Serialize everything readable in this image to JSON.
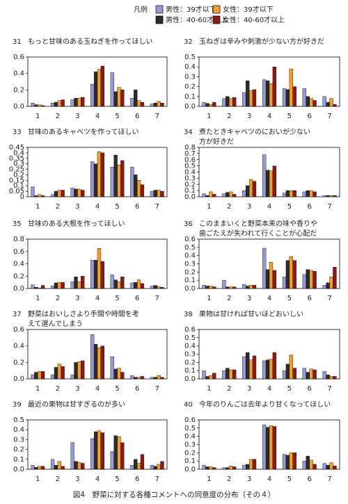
{
  "legend": {
    "title": "凡例",
    "series": [
      {
        "name": "男性：39才以下",
        "color": "#9a9ad0"
      },
      {
        "name": "男性：40-60才以上",
        "color": "#2b2b2b"
      },
      {
        "name": "女性：39才以下",
        "color": "#f0a030"
      },
      {
        "name": "女性：40-60才以上",
        "color": "#8b1a1a"
      }
    ]
  },
  "chart_data": [
    {
      "type": "bar",
      "number": "31",
      "title_lines": [
        "もっと甘味のある玉ねぎを作ってほしい"
      ],
      "categories": [
        "1",
        "2",
        "3",
        "4",
        "5",
        "6",
        "7"
      ],
      "series": [
        {
          "values": [
            0.04,
            0.04,
            0.08,
            0.27,
            0.41,
            0.1,
            0.03
          ]
        },
        {
          "values": [
            0.02,
            0.05,
            0.1,
            0.42,
            0.18,
            0.2,
            0.04
          ]
        },
        {
          "values": [
            0.02,
            0.07,
            0.1,
            0.45,
            0.23,
            0.07,
            0.06
          ]
        },
        {
          "values": [
            0.01,
            0.08,
            0.11,
            0.49,
            0.2,
            0.05,
            0.04
          ]
        }
      ],
      "ylim": [
        0,
        0.6
      ],
      "yticks": [
        {
          "value": 0,
          "label": "0.0"
        },
        0.2,
        0.4,
        0.6
      ]
    },
    {
      "type": "bar",
      "number": "32",
      "title_lines": [
        "玉ねぎは辛みや刺激が少ない方が好きだ"
      ],
      "categories": [
        "1",
        "2",
        "3",
        "4",
        "5",
        "6",
        "7"
      ],
      "series": [
        {
          "values": [
            0.04,
            0.08,
            0.14,
            0.27,
            0.18,
            0.18,
            0.1
          ]
        },
        {
          "values": [
            0.03,
            0.1,
            0.26,
            0.26,
            0.17,
            0.1,
            0.04
          ]
        },
        {
          "values": [
            0.02,
            0.08,
            0.16,
            0.23,
            0.38,
            0.08,
            0.08
          ]
        },
        {
          "values": [
            0.04,
            0.09,
            0.17,
            0.4,
            0.2,
            0.06,
            0.02
          ]
        }
      ],
      "ylim": [
        0,
        0.5
      ],
      "yticks": [
        {
          "value": 0,
          "label": "0.0"
        },
        0.1,
        0.2,
        0.3,
        0.4,
        0.5
      ]
    },
    {
      "type": "bar",
      "number": "33",
      "title_lines": [
        "甘味のあるキャベツを作ってほしい"
      ],
      "categories": [
        "1",
        "2",
        "3",
        "4",
        "5",
        "6",
        "7"
      ],
      "series": [
        {
          "values": [
            0.09,
            0.02,
            0.08,
            0.32,
            0.27,
            0.27,
            0.05
          ]
        },
        {
          "values": [
            0.01,
            0.05,
            0.07,
            0.3,
            0.38,
            0.2,
            0.06
          ]
        },
        {
          "values": [
            0.02,
            0.06,
            0.07,
            0.41,
            0.29,
            0.15,
            0.06
          ]
        },
        {
          "values": [
            0.01,
            0.06,
            0.06,
            0.4,
            0.33,
            0.11,
            0.05
          ]
        }
      ],
      "ylim": [
        0,
        0.45
      ],
      "yticks": [
        0,
        0.05,
        0.1,
        0.15,
        0.2,
        0.25,
        0.3,
        0.35,
        0.4,
        0.45
      ]
    },
    {
      "type": "bar",
      "number": "34",
      "title_lines": [
        "煮たときキャベツのにおいが少ない",
        "方が好きだ"
      ],
      "categories": [
        "1",
        "2",
        "3",
        "4",
        "5",
        "6",
        "7"
      ],
      "series": [
        {
          "values": [
            0.05,
            0.05,
            0.1,
            0.68,
            0.06,
            0.08,
            0.02
          ]
        },
        {
          "values": [
            0.02,
            0.07,
            0.18,
            0.43,
            0.1,
            0.1,
            0.02
          ]
        },
        {
          "values": [
            0.08,
            0.08,
            0.28,
            0.42,
            0.1,
            0.1,
            0.02
          ]
        },
        {
          "values": [
            0.04,
            0.04,
            0.25,
            0.5,
            0.1,
            0.08,
            0.02
          ]
        }
      ],
      "ylim": [
        0,
        0.8
      ],
      "yticks": [
        {
          "value": 0,
          "label": "0.0"
        },
        0.1,
        0.2,
        0.3,
        0.4,
        0.5,
        0.6,
        0.7,
        0.8
      ]
    },
    {
      "type": "bar",
      "number": "35",
      "title_lines": [
        "甘味のある大根を作ってほしい"
      ],
      "categories": [
        "1",
        "2",
        "3",
        "4",
        "5",
        "6",
        "7"
      ],
      "series": [
        {
          "values": [
            0.06,
            0.04,
            0.11,
            0.46,
            0.22,
            0.09,
            0.04
          ]
        },
        {
          "values": [
            0.02,
            0.09,
            0.19,
            0.46,
            0.14,
            0.1,
            0.05
          ]
        },
        {
          "values": [
            0.01,
            0.1,
            0.11,
            0.65,
            0.11,
            0.14,
            0.03
          ]
        },
        {
          "values": [
            0.05,
            0.1,
            0.2,
            0.44,
            0.19,
            0.08,
            0.02
          ]
        }
      ],
      "ylim": [
        0,
        0.8
      ],
      "yticks": [
        {
          "value": 0,
          "label": "0.0"
        },
        0.2,
        0.4,
        0.6,
        0.8
      ]
    },
    {
      "type": "bar",
      "number": "36",
      "title_lines": [
        "このままいくと野菜本来の味や香りや",
        "歯ごたえが失われて行くことが心配だ"
      ],
      "categories": [
        "1",
        "2",
        "3",
        "4",
        "5",
        "6",
        "7"
      ],
      "series": [
        {
          "values": [
            0.04,
            0.1,
            0.05,
            0.49,
            0.14,
            0.17,
            0.04
          ]
        },
        {
          "values": [
            0.03,
            0.02,
            0.03,
            0.23,
            0.34,
            0.23,
            0.07
          ]
        },
        {
          "values": [
            0.03,
            0.02,
            0.04,
            0.32,
            0.39,
            0.22,
            0.14
          ]
        },
        {
          "values": [
            0.02,
            0.02,
            0.04,
            0.22,
            0.34,
            0.21,
            0.26
          ]
        }
      ],
      "ylim": [
        0,
        0.6
      ],
      "yticks": [
        {
          "value": 0,
          "label": "0.0"
        },
        0.1,
        0.2,
        0.3,
        0.4,
        0.5,
        0.6
      ]
    },
    {
      "type": "bar",
      "number": "37",
      "title_lines": [
        "野菜はおいしさより手間や時間を考",
        "えて選んでしまう"
      ],
      "categories": [
        "1",
        "2",
        "3",
        "4",
        "5",
        "6",
        "7"
      ],
      "series": [
        {
          "values": [
            0.05,
            0.05,
            0.05,
            0.54,
            0.27,
            0.04,
            0.02
          ]
        },
        {
          "values": [
            0.08,
            0.14,
            0.2,
            0.42,
            0.12,
            0.02,
            0.02
          ]
        },
        {
          "values": [
            0.09,
            0.18,
            0.21,
            0.38,
            0.13,
            0.02,
            0.04
          ]
        },
        {
          "values": [
            0.09,
            0.15,
            0.22,
            0.4,
            0.08,
            0.03,
            0.02
          ]
        }
      ],
      "ylim": [
        0,
        0.6
      ],
      "yticks": [
        {
          "value": 0,
          "label": "0.0"
        },
        0.2,
        0.4,
        0.6
      ]
    },
    {
      "type": "bar",
      "number": "38",
      "title_lines": [
        "果物は甘ければ甘いほどおいしい"
      ],
      "categories": [
        "1",
        "2",
        "3",
        "4",
        "5",
        "6",
        "7"
      ],
      "series": [
        {
          "values": [
            0.1,
            0.1,
            0.27,
            0.22,
            0.1,
            0.13,
            0.09
          ]
        },
        {
          "values": [
            0.03,
            0.13,
            0.32,
            0.23,
            0.18,
            0.08,
            0.05
          ]
        },
        {
          "values": [
            0.04,
            0.11,
            0.23,
            0.24,
            0.29,
            0.12,
            0.03
          ]
        },
        {
          "values": [
            0.07,
            0.11,
            0.28,
            0.32,
            0.13,
            0.11,
            0.03
          ]
        }
      ],
      "ylim": [
        0,
        0.6
      ],
      "yticks": [
        {
          "value": 0,
          "label": "0.0"
        },
        0.1,
        0.2,
        0.3,
        0.4,
        0.5,
        0.6
      ]
    },
    {
      "type": "bar",
      "number": "39",
      "title_lines": [
        "最近の果物は甘すぎるのが多い"
      ],
      "categories": [
        "1",
        "2",
        "3",
        "4",
        "5",
        "6",
        "7"
      ],
      "series": [
        {
          "values": [
            0.04,
            0.1,
            0.27,
            0.31,
            0.18,
            0.04,
            0.04
          ]
        },
        {
          "values": [
            0.02,
            0.04,
            0.08,
            0.38,
            0.34,
            0.1,
            0.03
          ]
        },
        {
          "values": [
            0.03,
            0.08,
            0.07,
            0.39,
            0.33,
            0.06,
            0.05
          ]
        },
        {
          "values": [
            0.03,
            0.03,
            0.06,
            0.37,
            0.27,
            0.15,
            0.08
          ]
        }
      ],
      "ylim": [
        0,
        0.5
      ],
      "yticks": [
        {
          "value": 0,
          "label": "0.0"
        },
        0.1,
        0.2,
        0.3,
        0.4,
        0.5
      ]
    },
    {
      "type": "bar",
      "number": "40",
      "title_lines": [
        "今年のりんごは去年より甘くなってほしい"
      ],
      "categories": [
        "1",
        "2",
        "3",
        "4",
        "5",
        "6",
        "7"
      ],
      "series": [
        {
          "values": [
            0.05,
            0.02,
            0.05,
            0.54,
            0.18,
            0.1,
            0.07
          ]
        },
        {
          "values": [
            0.03,
            0.02,
            0.06,
            0.51,
            0.17,
            0.16,
            0.05
          ]
        },
        {
          "values": [
            0.03,
            0.04,
            0.12,
            0.53,
            0.2,
            0.11,
            0.08
          ]
        },
        {
          "values": [
            0.02,
            0.03,
            0.12,
            0.52,
            0.2,
            0.06,
            0.04
          ]
        }
      ],
      "ylim": [
        0,
        0.6
      ],
      "yticks": [
        {
          "value": 0,
          "label": "0.0"
        },
        0.1,
        0.2,
        0.3,
        0.4,
        0.5,
        0.6
      ]
    }
  ],
  "caption": "図4　野菜に対する各種コメントへの同意度の分布（その４）"
}
